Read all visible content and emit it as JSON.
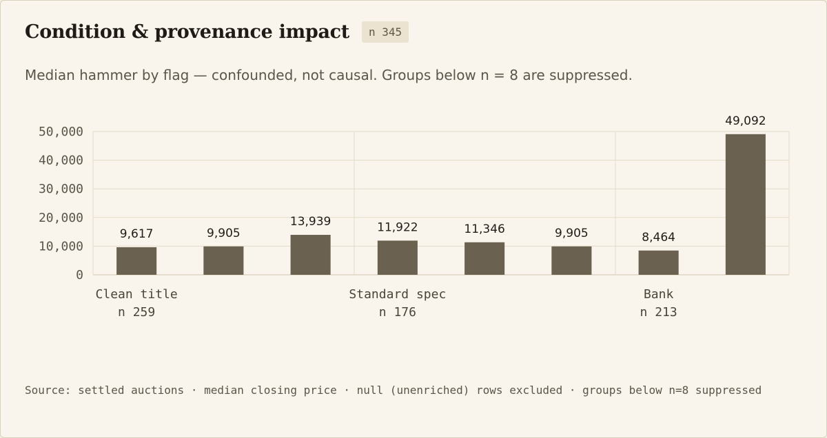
{
  "header": {
    "title": "Condition & provenance impact",
    "badge": "n 345"
  },
  "subtitle": "Median hammer by flag — confounded, not causal. Groups below n = 8 are suppressed.",
  "footer": "Source: settled auctions · median closing price · null (unenriched) rows excluded · groups below n=8 suppressed",
  "colors": {
    "bar": "#6b6151",
    "grid": "#e3dbc9",
    "axis": "#cfc5b1"
  },
  "chart_data": {
    "type": "bar",
    "values": [
      9617,
      9905,
      13939,
      11922,
      11346,
      9905,
      8464,
      49092
    ],
    "value_labels": [
      "9,617",
      "9,905",
      "13,939",
      "11,922",
      "11,346",
      "9,905",
      "8,464",
      "49,092"
    ],
    "groups": [
      {
        "label": "Clean title",
        "n": "n 259"
      },
      {
        "label": "Standard spec",
        "n": "n 176"
      },
      {
        "label": "Bank",
        "n": "n 213"
      }
    ],
    "yticks": [
      {
        "value": 0,
        "label": "0"
      },
      {
        "value": 10000,
        "label": "10,000"
      },
      {
        "value": 20000,
        "label": "20,000"
      },
      {
        "value": 30000,
        "label": "30,000"
      },
      {
        "value": 40000,
        "label": "40,000"
      },
      {
        "value": 50000,
        "label": "50,000"
      }
    ],
    "ylim": [
      0,
      50000
    ],
    "grid": true
  }
}
